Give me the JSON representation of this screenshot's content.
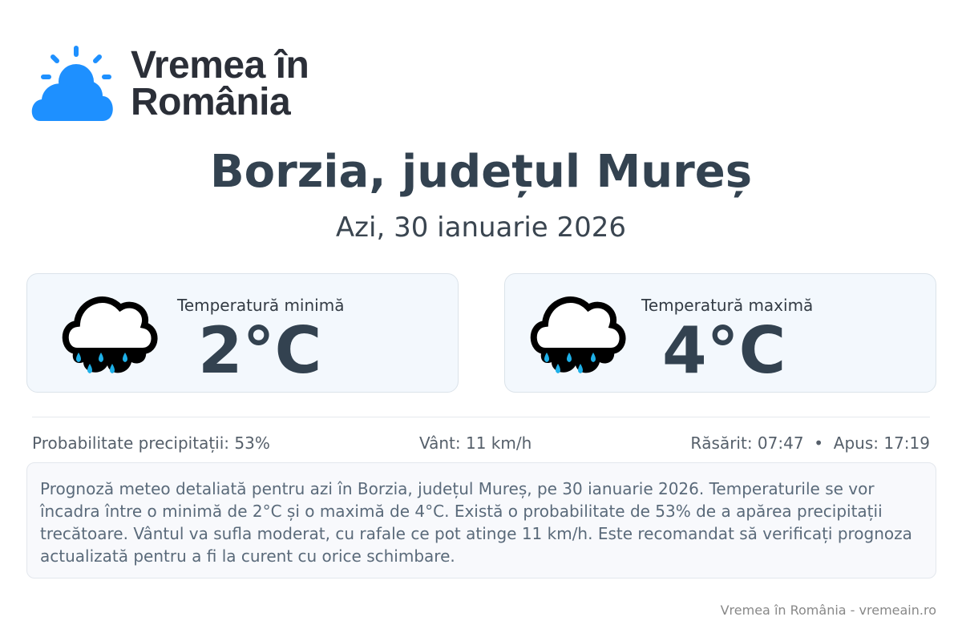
{
  "brand": {
    "name_line1": "Vremea în",
    "name_line2": "România",
    "color": "#1e90ff"
  },
  "header": {
    "title": "Borzia, județul Mureș",
    "date": "Azi, 30 ianuarie 2026"
  },
  "cards": [
    {
      "label": "Temperatură minimă",
      "value": "2°C",
      "icon": "rain-cloud-icon"
    },
    {
      "label": "Temperatură maximă",
      "value": "4°C",
      "icon": "rain-cloud-icon"
    }
  ],
  "info": {
    "precipitation": "Probabilitate precipitații: 53%",
    "wind": "Vânt: 11 km/h",
    "sun": "Răsărit: 07:47  •  Apus: 17:19"
  },
  "description": "Prognoză meteo detaliată pentru azi în Borzia, județul Mureș, pe 30 ianuarie 2026. Temperaturile se vor încadra între o minimă de 2°C și o maximă de 4°C. Există o probabilitate de 53% de a apărea precipitații trecătoare. Vântul va sufla moderat, cu rafale ce pot atinge 11 km/h. Este recomandat să verificați prognoza actualizată pentru a fi la curent cu orice schimbare.",
  "footer": "Vremea în România - vremeain.ro"
}
